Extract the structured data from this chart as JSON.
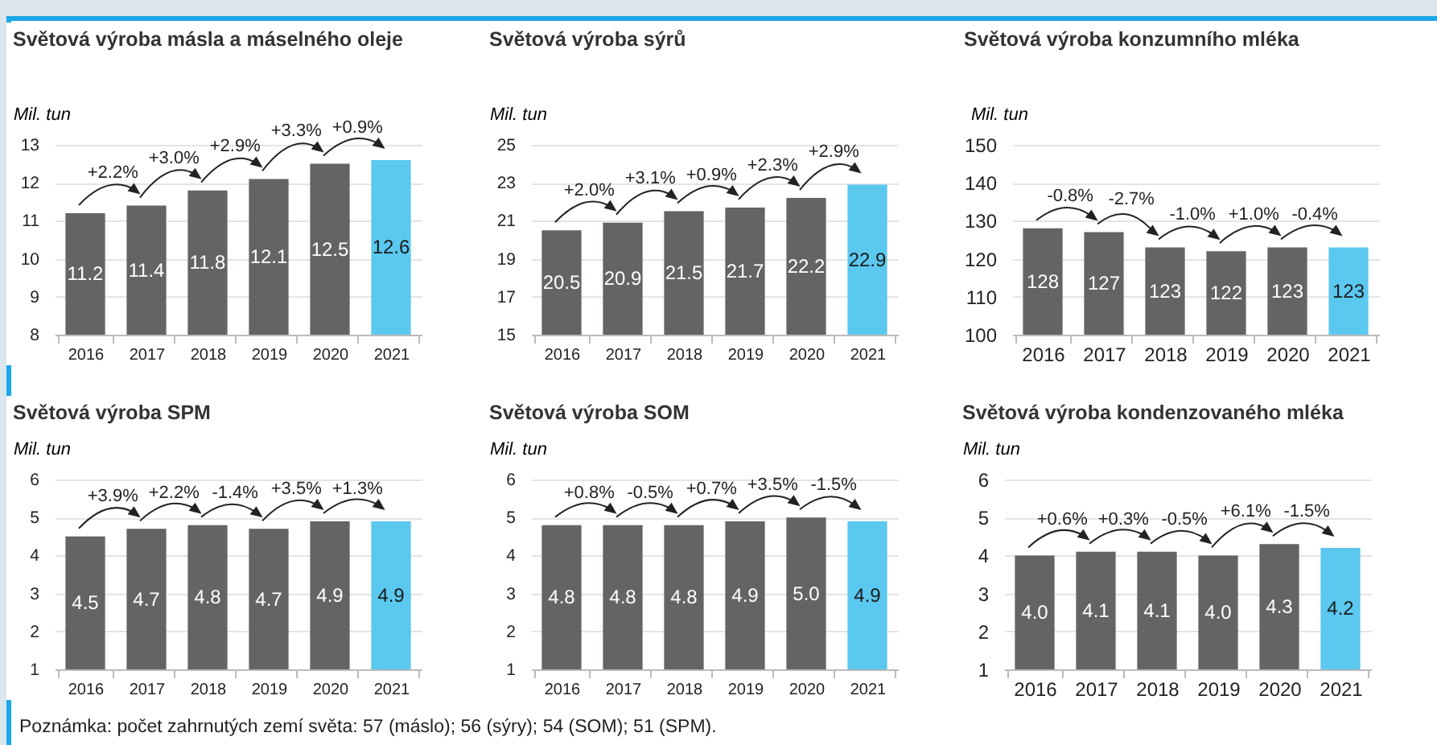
{
  "chart_data": [
    {
      "type": "bar",
      "title": "Světová výroba másla a máselného oleje",
      "ylabel": "Mil. tun",
      "categories": [
        "2016",
        "2017",
        "2018",
        "2019",
        "2020",
        "2021"
      ],
      "values": [
        11.2,
        11.4,
        11.8,
        12.1,
        12.5,
        12.6
      ],
      "value_labels": [
        "11.2",
        "11.4",
        "11.8",
        "12.1",
        "12.5",
        "12.6"
      ],
      "colors": [
        "#636466",
        "#636466",
        "#636466",
        "#636466",
        "#636466",
        "#5bc8f0"
      ],
      "ylim": [
        8,
        13
      ],
      "yticks": [
        8,
        9,
        10,
        11,
        12,
        13
      ],
      "grid": "y",
      "annotations": [
        "+2.2%",
        "+3.0%",
        "+2.9%",
        "+3.3%",
        "+0.9%"
      ]
    },
    {
      "type": "bar",
      "title": "Světová výroba sýrů",
      "ylabel": "Mil. tun",
      "categories": [
        "2016",
        "2017",
        "2018",
        "2019",
        "2020",
        "2021"
      ],
      "values": [
        20.5,
        20.9,
        21.5,
        21.7,
        22.2,
        22.9
      ],
      "value_labels": [
        "20.5",
        "20.9",
        "21.5",
        "21.7",
        "22.2",
        "22.9"
      ],
      "colors": [
        "#636466",
        "#636466",
        "#636466",
        "#636466",
        "#636466",
        "#5bc8f0"
      ],
      "ylim": [
        15,
        25
      ],
      "yticks": [
        15,
        17,
        19,
        21,
        23,
        25
      ],
      "grid": "y",
      "annotations": [
        "+2.0%",
        "+3.1%",
        "+0.9%",
        "+2.3%",
        "+2.9%"
      ]
    },
    {
      "type": "bar",
      "title": "Světová výroba konzumního mléka",
      "ylabel": "Mil. tun",
      "categories": [
        "2016",
        "2017",
        "2018",
        "2019",
        "2020",
        "2021"
      ],
      "values": [
        128,
        127,
        123,
        122,
        123,
        123
      ],
      "value_labels": [
        "128",
        "127",
        "123",
        "122",
        "123",
        "123"
      ],
      "colors": [
        "#636466",
        "#636466",
        "#636466",
        "#636466",
        "#636466",
        "#5bc8f0"
      ],
      "ylim": [
        100,
        150
      ],
      "yticks": [
        100,
        110,
        120,
        130,
        140,
        150
      ],
      "grid": "y",
      "annotations": [
        "-0.8%",
        "-2.7%",
        "-1.0%",
        "+1.0%",
        "-0.4%"
      ]
    },
    {
      "type": "bar",
      "title": "Světová výroba SPM",
      "ylabel": "Mil. tun",
      "categories": [
        "2016",
        "2017",
        "2018",
        "2019",
        "2020",
        "2021"
      ],
      "values": [
        4.5,
        4.7,
        4.8,
        4.7,
        4.9,
        4.9
      ],
      "value_labels": [
        "4.5",
        "4.7",
        "4.8",
        "4.7",
        "4.9",
        "4.9"
      ],
      "colors": [
        "#636466",
        "#636466",
        "#636466",
        "#636466",
        "#636466",
        "#5bc8f0"
      ],
      "ylim": [
        1,
        6
      ],
      "yticks": [
        1,
        2,
        3,
        4,
        5,
        6
      ],
      "grid": "y",
      "annotations": [
        "+3.9%",
        "+2.2%",
        "-1.4%",
        "+3.5%",
        "+1.3%"
      ]
    },
    {
      "type": "bar",
      "title": "Světová výroba SOM",
      "ylabel": "Mil. tun",
      "categories": [
        "2016",
        "2017",
        "2018",
        "2019",
        "2020",
        "2021"
      ],
      "values": [
        4.8,
        4.8,
        4.8,
        4.9,
        5.0,
        4.9
      ],
      "value_labels": [
        "4.8",
        "4.8",
        "4.8",
        "4.9",
        "5.0",
        "4.9"
      ],
      "colors": [
        "#636466",
        "#636466",
        "#636466",
        "#636466",
        "#636466",
        "#5bc8f0"
      ],
      "ylim": [
        1,
        6
      ],
      "yticks": [
        1,
        2,
        3,
        4,
        5,
        6
      ],
      "grid": "y",
      "annotations": [
        "+0.8%",
        "-0.5%",
        "+0.7%",
        "+3.5%",
        "-1.5%"
      ]
    },
    {
      "type": "bar",
      "title": "Světová výroba kondenzovaného mléka",
      "ylabel": "Mil. tun",
      "categories": [
        "2016",
        "2017",
        "2018",
        "2019",
        "2020",
        "2021"
      ],
      "values": [
        4.0,
        4.1,
        4.1,
        4.0,
        4.3,
        4.2
      ],
      "value_labels": [
        "4.0",
        "4.1",
        "4.1",
        "4.0",
        "4.3",
        "4.2"
      ],
      "colors": [
        "#636466",
        "#636466",
        "#636466",
        "#636466",
        "#636466",
        "#5bc8f0"
      ],
      "ylim": [
        1,
        6
      ],
      "yticks": [
        1,
        2,
        3,
        4,
        5,
        6
      ],
      "grid": "y",
      "annotations": [
        "+0.6%",
        "+0.3%",
        "-0.5%",
        "+6.1%",
        "-1.5%"
      ]
    },
    {
      "type": "other",
      "annotations": [
        "Poznámka: počet zahrnutých zemí světa: 57 (máslo); 56 (sýry); 54 (SOM); 51 (SPM)."
      ]
    }
  ]
}
